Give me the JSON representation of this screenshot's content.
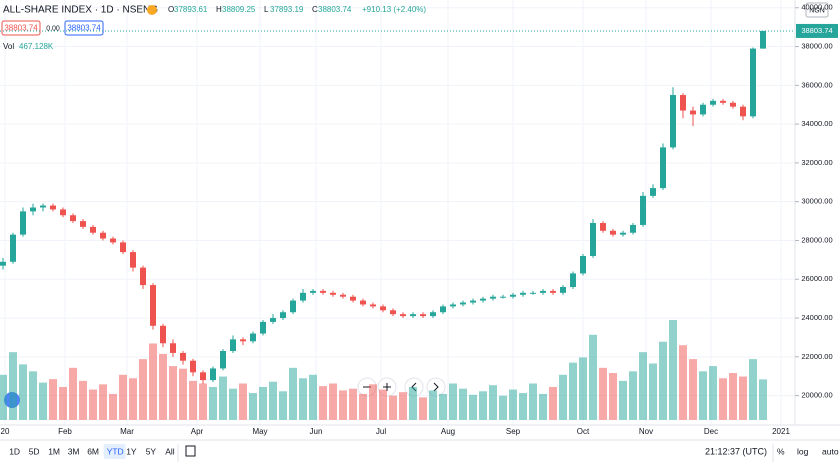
{
  "chart_data": {
    "type": "candlestick",
    "title": "ALL-SHARE INDEX · 1D · NSENG",
    "ohlc_labels": [
      "O",
      "H",
      "L",
      "C"
    ],
    "change_label": "+910.13 (+2.40%)",
    "spread_label": "0.00",
    "volume_name": "Vol",
    "volume_last_label": "467.128K",
    "up_color": "#26a69a",
    "down_color": "#ef5350",
    "grid": true,
    "open": [
      26700,
      26900,
      28300,
      29500,
      29700,
      29800,
      29600,
      29300,
      29000,
      28700,
      28400,
      28100,
      27900,
      27400,
      26600,
      25700,
      23600,
      22700,
      22200,
      21800,
      21200,
      20800,
      21400,
      22300,
      22900,
      22800,
      23200,
      23800,
      24000,
      24300,
      24900,
      25300,
      25400,
      25300,
      25200,
      25100,
      24900,
      24700,
      24600,
      24400,
      24200,
      24100,
      24200,
      24100,
      24300,
      24600,
      24700,
      24800,
      24900,
      25000,
      25100,
      25100,
      25200,
      25300,
      25300,
      25400,
      25300,
      25600,
      26300,
      27200,
      28900,
      28500,
      28300,
      28400,
      28800,
      30300,
      30700,
      32800,
      35500,
      34700,
      34500,
      35000,
      35200,
      35100,
      34900,
      34400,
      37893.61
    ],
    "high": [
      27100,
      28400,
      29700,
      29900,
      29900,
      29900,
      29700,
      29400,
      29100,
      28800,
      28500,
      28200,
      28000,
      27500,
      26700,
      25800,
      23700,
      22900,
      22300,
      21900,
      21300,
      21500,
      22400,
      23100,
      23000,
      23300,
      23900,
      24200,
      24400,
      25000,
      25500,
      25500,
      25500,
      25400,
      25300,
      25200,
      25000,
      24800,
      24700,
      24500,
      24300,
      24300,
      24300,
      24400,
      24700,
      24800,
      24900,
      25000,
      25100,
      25200,
      25200,
      25300,
      25400,
      25400,
      25500,
      25500,
      25700,
      26400,
      27300,
      29100,
      29000,
      28600,
      28500,
      28900,
      30500,
      30900,
      33000,
      35900,
      35600,
      34900,
      35100,
      35300,
      35300,
      35200,
      35000,
      37950,
      38809.25
    ],
    "low": [
      26500,
      26800,
      28200,
      29300,
      29500,
      29500,
      29200,
      28900,
      28600,
      28300,
      28000,
      27800,
      27300,
      26400,
      25500,
      23400,
      22500,
      22000,
      21600,
      21000,
      20600,
      20700,
      21300,
      22200,
      22600,
      22700,
      23100,
      23700,
      23900,
      24200,
      24800,
      25200,
      25200,
      25100,
      25000,
      24800,
      24600,
      24500,
      24300,
      24100,
      24000,
      24000,
      24000,
      24000,
      24200,
      24500,
      24600,
      24700,
      24800,
      24900,
      25000,
      25000,
      25100,
      25200,
      25200,
      25200,
      25200,
      25500,
      26200,
      27100,
      28400,
      28200,
      28200,
      28300,
      28700,
      30200,
      30600,
      32700,
      34300,
      33900,
      34400,
      34900,
      35000,
      34800,
      34200,
      34300,
      37893.19
    ],
    "close": [
      26900,
      28300,
      29500,
      29700,
      29800,
      29600,
      29300,
      29000,
      28700,
      28400,
      28100,
      27900,
      27400,
      26600,
      25700,
      23600,
      22700,
      22200,
      21800,
      21200,
      20800,
      21400,
      22300,
      22900,
      22800,
      23200,
      23800,
      24000,
      24300,
      24900,
      25300,
      25400,
      25300,
      25200,
      25100,
      24900,
      24700,
      24600,
      24400,
      24200,
      24100,
      24200,
      24100,
      24300,
      24600,
      24700,
      24800,
      24900,
      25000,
      25100,
      25100,
      25200,
      25300,
      25300,
      25400,
      25300,
      25600,
      26300,
      27200,
      28900,
      28500,
      28300,
      28400,
      28800,
      30300,
      30700,
      32800,
      35500,
      34700,
      34500,
      35000,
      35200,
      35100,
      34900,
      34400,
      37893.61,
      38803.74
    ],
    "volume": [
      520000,
      780000,
      640000,
      560000,
      430000,
      470000,
      380000,
      600000,
      450000,
      350000,
      410000,
      300000,
      520000,
      480000,
      700000,
      880000,
      760000,
      620000,
      590000,
      450000,
      420000,
      380000,
      500000,
      360000,
      420000,
      310000,
      380000,
      440000,
      330000,
      600000,
      480000,
      520000,
      390000,
      420000,
      340000,
      360000,
      300000,
      410000,
      350000,
      280000,
      320000,
      380000,
      260000,
      340000,
      300000,
      420000,
      360000,
      290000,
      330000,
      400000,
      280000,
      350000,
      310000,
      420000,
      300000,
      380000,
      520000,
      660000,
      720000,
      980000,
      600000,
      540000,
      450000,
      560000,
      780000,
      650000,
      900000,
      1150000,
      860000,
      700000,
      560000,
      620000,
      480000,
      540000,
      500000,
      700000,
      467128
    ],
    "ylim": [
      19000,
      40400
    ],
    "yticks": [
      {
        "value": 20000,
        "label": "20000.00"
      },
      {
        "value": 22000,
        "label": "22000.00"
      },
      {
        "value": 24000,
        "label": "24000.00"
      },
      {
        "value": 26000,
        "label": "26000.00"
      },
      {
        "value": 28000,
        "label": "28000.00"
      },
      {
        "value": 30000,
        "label": "30000.00"
      },
      {
        "value": 32000,
        "label": "32000.00"
      },
      {
        "value": 34000,
        "label": "34000.00"
      },
      {
        "value": 36000,
        "label": "36000.00"
      },
      {
        "value": 38000,
        "label": "38000.00"
      },
      {
        "value": 40000,
        "label": "40000.00"
      }
    ],
    "xticks": [
      {
        "value": 0.2,
        "label": "20"
      },
      {
        "value": 6.2,
        "label": "Feb"
      },
      {
        "value": 12.4,
        "label": "Mar"
      },
      {
        "value": 19.4,
        "label": "Apr"
      },
      {
        "value": 25.7,
        "label": "May"
      },
      {
        "value": 31.3,
        "label": "Jun"
      },
      {
        "value": 37.8,
        "label": "Jul"
      },
      {
        "value": 44.5,
        "label": "Aug"
      },
      {
        "value": 51,
        "label": "Sep"
      },
      {
        "value": 58,
        "label": "Oct"
      },
      {
        "value": 64.3,
        "label": "Nov"
      },
      {
        "value": 70.8,
        "label": "Dec"
      },
      {
        "value": 77.8,
        "label": "2021"
      }
    ]
  },
  "ui": {
    "currency": "NGN",
    "ranges": [
      "1D",
      "5D",
      "1M",
      "3M",
      "6M",
      "YTD",
      "1Y",
      "5Y",
      "All"
    ],
    "clock": "21:12:37 (UTC)",
    "options": [
      "%",
      "log",
      "auto"
    ]
  }
}
